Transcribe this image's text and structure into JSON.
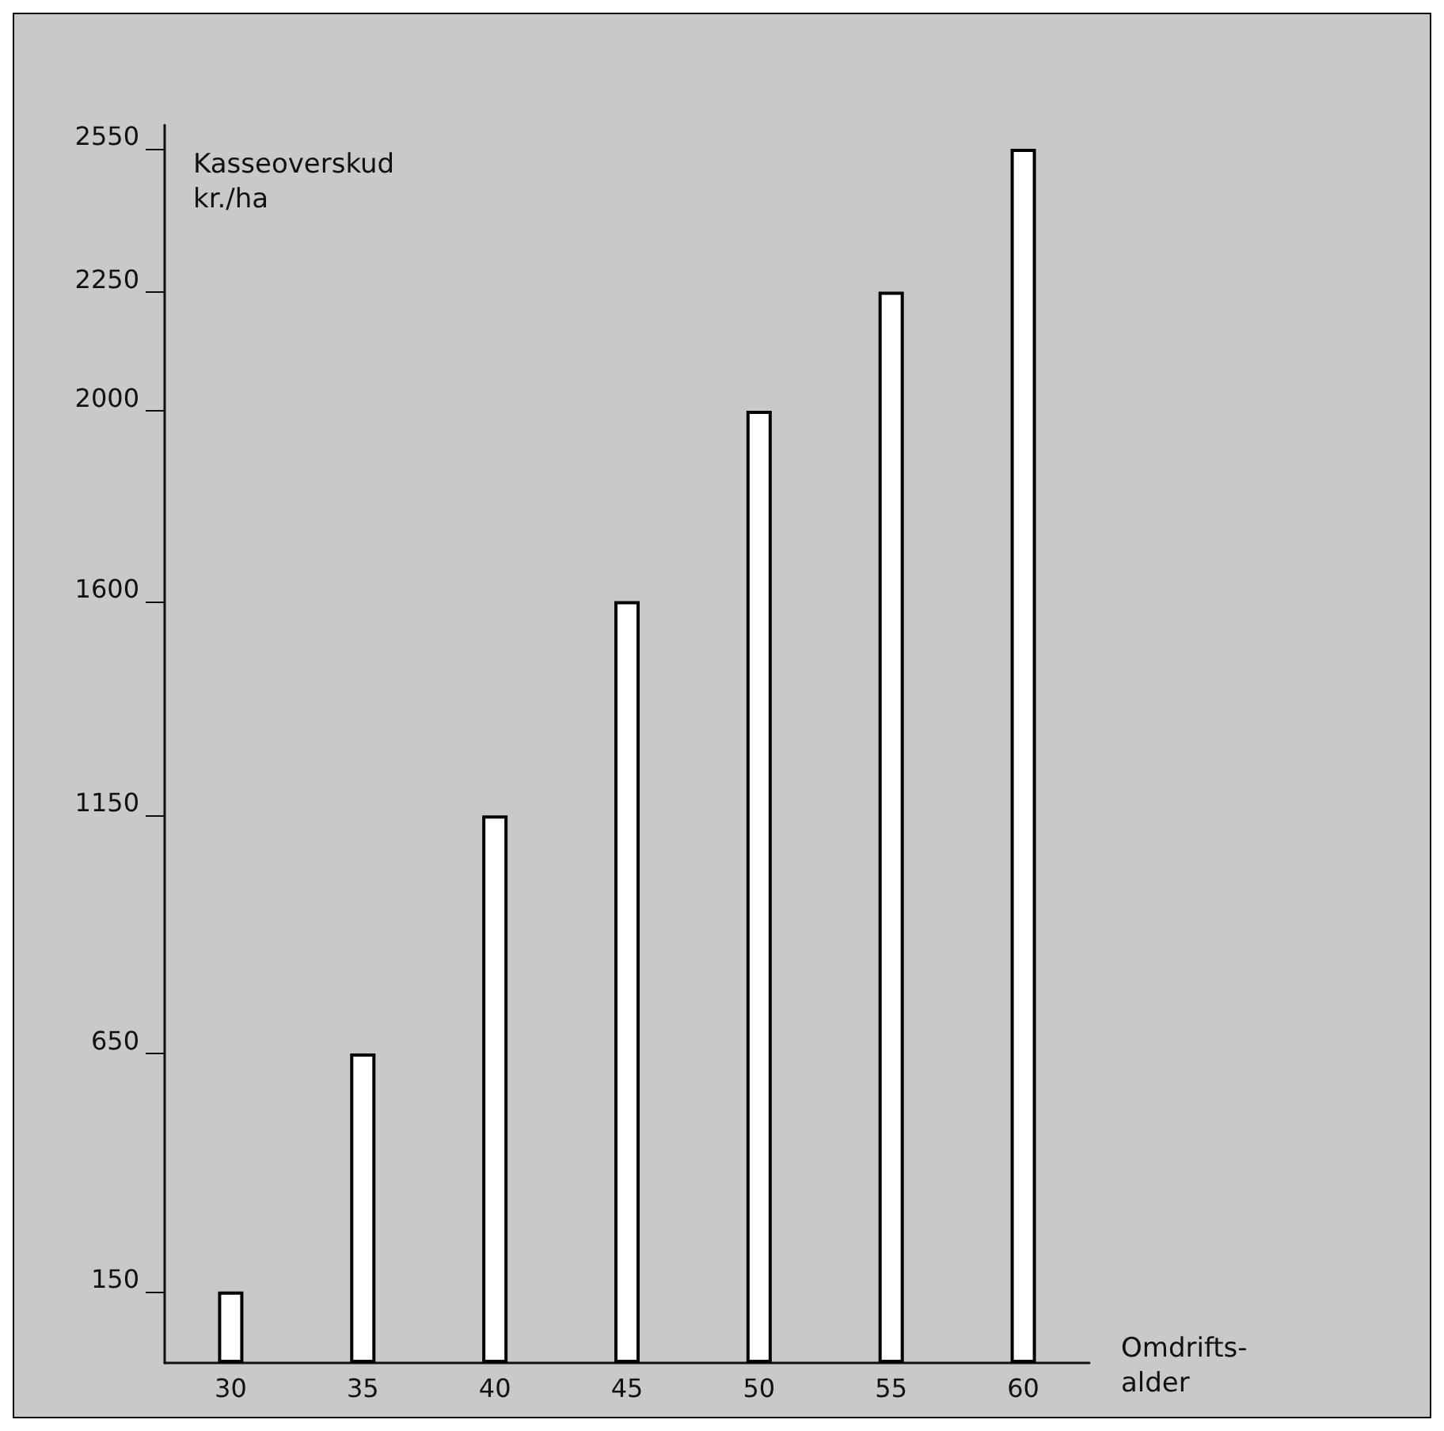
{
  "chart_data": {
    "type": "bar",
    "categories": [
      "30",
      "35",
      "40",
      "45",
      "50",
      "55",
      "60"
    ],
    "values": [
      150,
      650,
      1150,
      1600,
      2000,
      2250,
      2550
    ],
    "color": "#ffffff",
    "ylabel": "Kasseoverskud\nkr./ha",
    "xlabel": "Omdrifts-\nalder",
    "ylim": [
      0,
      2600
    ],
    "yticks": [
      150,
      650,
      1150,
      1600,
      2000,
      2250,
      2550
    ],
    "grid": false
  }
}
